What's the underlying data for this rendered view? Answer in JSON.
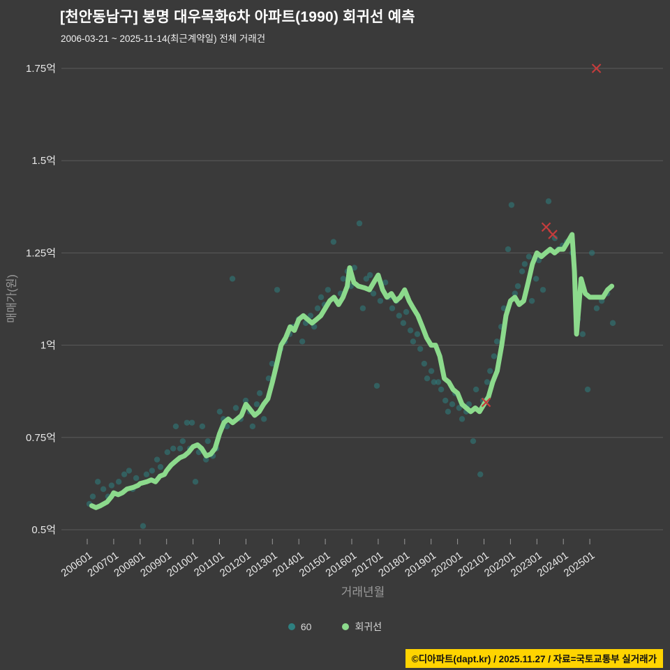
{
  "header": {
    "title": "[천안동남구] 봉명 대우목화6차 아파트(1990) 회귀선 예측",
    "subtitle": "2006-03-21 ~ 2025-11-14(최근계약일) 전체 거래건"
  },
  "footer": {
    "credit": "©디아파트(dapt.kr) / 2025.11.27 / 자료=국토교통부 실거래가"
  },
  "chart_data": {
    "type": "scatter",
    "title": "[천안동남구] 봉명 대우목화6차 아파트(1990) 회귀선 예측",
    "xlabel": "거래년월",
    "ylabel": "매매가(원)",
    "unit": "억원",
    "grid": "horizontal-only",
    "legend_position": "bottom-center",
    "xlim": [
      2005.1,
      2027.7
    ],
    "ylim": [
      0.38,
      1.78
    ],
    "x_ticks": [
      "200601",
      "200701",
      "200801",
      "200901",
      "201001",
      "201101",
      "201201",
      "201301",
      "201401",
      "201501",
      "201601",
      "201701",
      "201801",
      "201901",
      "202001",
      "202101",
      "202201",
      "202301",
      "202401",
      "202501"
    ],
    "y_ticks": [
      {
        "label": "0.5억",
        "value": 0.5
      },
      {
        "label": "0.75억",
        "value": 0.75
      },
      {
        "label": "1억",
        "value": 1.0
      },
      {
        "label": "1.25억",
        "value": 1.25
      },
      {
        "label": "1.5억",
        "value": 1.5
      },
      {
        "label": "1.75억",
        "value": 1.75
      }
    ],
    "legend": [
      {
        "label": "60",
        "color": "#2e8080"
      },
      {
        "label": "회귀선",
        "color": "#8cda8c"
      }
    ],
    "colors": {
      "background": "#3a3a3a",
      "grid": "#5a5a5a",
      "tick_label": "#e8e8e8",
      "axis_title": "#9a9a9a",
      "scatter": "#2e8080",
      "line": "#8cda8c",
      "outlier": "#c43c3c",
      "footer_bg": "#ffd400",
      "title": "#ffffff"
    },
    "series": [
      {
        "name": "60",
        "type": "scatter",
        "color": "#2e8080",
        "points": [
          [
            2006.08,
            0.57
          ],
          [
            2006.21,
            0.59
          ],
          [
            2006.4,
            0.63
          ],
          [
            2006.61,
            0.61
          ],
          [
            2006.79,
            0.59
          ],
          [
            2006.92,
            0.62
          ],
          [
            2007.19,
            0.63
          ],
          [
            2007.4,
            0.65
          ],
          [
            2007.58,
            0.66
          ],
          [
            2007.72,
            0.61
          ],
          [
            2007.85,
            0.64
          ],
          [
            2008.11,
            0.51
          ],
          [
            2008.24,
            0.65
          ],
          [
            2008.45,
            0.66
          ],
          [
            2008.64,
            0.69
          ],
          [
            2008.77,
            0.67
          ],
          [
            2009.03,
            0.71
          ],
          [
            2009.25,
            0.72
          ],
          [
            2009.35,
            0.78
          ],
          [
            2009.51,
            0.72
          ],
          [
            2009.61,
            0.74
          ],
          [
            2009.77,
            0.79
          ],
          [
            2009.88,
            0.72
          ],
          [
            2009.96,
            0.79
          ],
          [
            2010.09,
            0.63
          ],
          [
            2010.22,
            0.71
          ],
          [
            2010.35,
            0.78
          ],
          [
            2010.49,
            0.69
          ],
          [
            2010.56,
            0.74
          ],
          [
            2010.75,
            0.7
          ],
          [
            2010.88,
            0.72
          ],
          [
            2011.01,
            0.82
          ],
          [
            2011.15,
            0.8
          ],
          [
            2011.28,
            0.78
          ],
          [
            2011.49,
            1.18
          ],
          [
            2011.62,
            0.83
          ],
          [
            2011.8,
            0.8
          ],
          [
            2011.99,
            0.85
          ],
          [
            2012.15,
            0.82
          ],
          [
            2012.25,
            0.78
          ],
          [
            2012.41,
            0.84
          ],
          [
            2012.52,
            0.87
          ],
          [
            2012.68,
            0.8
          ],
          [
            2012.86,
            0.91
          ],
          [
            2012.99,
            0.95
          ],
          [
            2013.18,
            1.15
          ],
          [
            2013.31,
            0.99
          ],
          [
            2013.47,
            1.01
          ],
          [
            2013.65,
            1.03
          ],
          [
            2013.78,
            1.05
          ],
          [
            2013.99,
            1.07
          ],
          [
            2014.13,
            1.01
          ],
          [
            2014.26,
            1.06
          ],
          [
            2014.44,
            1.08
          ],
          [
            2014.58,
            1.05
          ],
          [
            2014.71,
            1.1
          ],
          [
            2014.84,
            1.13
          ],
          [
            2014.97,
            1.11
          ],
          [
            2015.1,
            1.15
          ],
          [
            2015.31,
            1.28
          ],
          [
            2015.42,
            1.12
          ],
          [
            2015.58,
            1.14
          ],
          [
            2015.68,
            1.18
          ],
          [
            2015.84,
            1.2
          ],
          [
            2015.97,
            1.16
          ],
          [
            2016.1,
            1.21
          ],
          [
            2016.29,
            1.33
          ],
          [
            2016.42,
            1.1
          ],
          [
            2016.55,
            1.18
          ],
          [
            2016.69,
            1.19
          ],
          [
            2016.82,
            1.14
          ],
          [
            2016.95,
            0.89
          ],
          [
            2017.08,
            1.12
          ],
          [
            2017.27,
            1.17
          ],
          [
            2017.42,
            1.13
          ],
          [
            2017.53,
            1.1
          ],
          [
            2017.69,
            1.12
          ],
          [
            2017.79,
            1.08
          ],
          [
            2017.95,
            1.06
          ],
          [
            2018.06,
            1.09
          ],
          [
            2018.22,
            1.04
          ],
          [
            2018.32,
            1.01
          ],
          [
            2018.48,
            1.03
          ],
          [
            2018.59,
            0.99
          ],
          [
            2018.74,
            0.95
          ],
          [
            2018.85,
            0.91
          ],
          [
            2019.01,
            0.93
          ],
          [
            2019.11,
            0.9
          ],
          [
            2019.27,
            0.9
          ],
          [
            2019.38,
            0.88
          ],
          [
            2019.54,
            0.85
          ],
          [
            2019.64,
            0.82
          ],
          [
            2019.8,
            0.84
          ],
          [
            2019.91,
            0.87
          ],
          [
            2020.06,
            0.83
          ],
          [
            2020.17,
            0.8
          ],
          [
            2020.33,
            0.82
          ],
          [
            2020.43,
            0.84
          ],
          [
            2020.59,
            0.74
          ],
          [
            2020.7,
            0.88
          ],
          [
            2020.86,
            0.65
          ],
          [
            2020.96,
            0.85
          ],
          [
            2021.12,
            0.9
          ],
          [
            2021.23,
            0.93
          ],
          [
            2021.38,
            0.97
          ],
          [
            2021.49,
            1.01
          ],
          [
            2021.65,
            1.05
          ],
          [
            2021.75,
            1.1
          ],
          [
            2021.91,
            1.26
          ],
          [
            2022.04,
            1.38
          ],
          [
            2022.17,
            1.14
          ],
          [
            2022.28,
            1.16
          ],
          [
            2022.44,
            1.2
          ],
          [
            2022.54,
            1.22
          ],
          [
            2022.7,
            1.24
          ],
          [
            2022.81,
            1.12
          ],
          [
            2022.97,
            1.18
          ],
          [
            2023.07,
            1.23
          ],
          [
            2023.23,
            1.15
          ],
          [
            2023.44,
            1.39
          ],
          [
            2023.68,
            1.29
          ],
          [
            2023.81,
            1.26
          ],
          [
            2023.97,
            1.27
          ],
          [
            2024.13,
            1.28
          ],
          [
            2024.34,
            1.25
          ],
          [
            2024.55,
            1.07
          ],
          [
            2024.73,
            1.03
          ],
          [
            2024.92,
            0.88
          ],
          [
            2025.08,
            1.25
          ],
          [
            2025.26,
            1.1
          ],
          [
            2025.45,
            1.12
          ],
          [
            2025.66,
            1.14
          ],
          [
            2025.87,
            1.06
          ]
        ]
      },
      {
        "name": "회귀선",
        "type": "line",
        "color": "#8cda8c",
        "points": [
          [
            2006.17,
            0.565
          ],
          [
            2006.33,
            0.56
          ],
          [
            2006.5,
            0.565
          ],
          [
            2006.75,
            0.575
          ],
          [
            2006.92,
            0.59
          ],
          [
            2007.0,
            0.6
          ],
          [
            2007.17,
            0.595
          ],
          [
            2007.33,
            0.6
          ],
          [
            2007.5,
            0.61
          ],
          [
            2007.75,
            0.615
          ],
          [
            2007.92,
            0.62
          ],
          [
            2008.0,
            0.625
          ],
          [
            2008.25,
            0.63
          ],
          [
            2008.42,
            0.635
          ],
          [
            2008.58,
            0.63
          ],
          [
            2008.75,
            0.645
          ],
          [
            2008.92,
            0.65
          ],
          [
            2009.0,
            0.66
          ],
          [
            2009.17,
            0.675
          ],
          [
            2009.33,
            0.685
          ],
          [
            2009.5,
            0.695
          ],
          [
            2009.67,
            0.7
          ],
          [
            2009.83,
            0.71
          ],
          [
            2010.0,
            0.725
          ],
          [
            2010.17,
            0.73
          ],
          [
            2010.33,
            0.72
          ],
          [
            2010.5,
            0.7
          ],
          [
            2010.67,
            0.705
          ],
          [
            2010.83,
            0.72
          ],
          [
            2011.0,
            0.76
          ],
          [
            2011.17,
            0.79
          ],
          [
            2011.33,
            0.8
          ],
          [
            2011.5,
            0.79
          ],
          [
            2011.67,
            0.8
          ],
          [
            2011.83,
            0.81
          ],
          [
            2012.0,
            0.84
          ],
          [
            2012.17,
            0.825
          ],
          [
            2012.33,
            0.81
          ],
          [
            2012.5,
            0.82
          ],
          [
            2012.67,
            0.84
          ],
          [
            2012.83,
            0.855
          ],
          [
            2013.0,
            0.9
          ],
          [
            2013.17,
            0.95
          ],
          [
            2013.33,
            1.0
          ],
          [
            2013.5,
            1.02
          ],
          [
            2013.67,
            1.05
          ],
          [
            2013.83,
            1.04
          ],
          [
            2014.0,
            1.07
          ],
          [
            2014.17,
            1.08
          ],
          [
            2014.33,
            1.07
          ],
          [
            2014.5,
            1.06
          ],
          [
            2014.67,
            1.07
          ],
          [
            2014.83,
            1.08
          ],
          [
            2015.0,
            1.1
          ],
          [
            2015.17,
            1.12
          ],
          [
            2015.33,
            1.13
          ],
          [
            2015.5,
            1.11
          ],
          [
            2015.67,
            1.13
          ],
          [
            2015.83,
            1.16
          ],
          [
            2015.92,
            1.21
          ],
          [
            2016.08,
            1.17
          ],
          [
            2016.25,
            1.16
          ],
          [
            2016.5,
            1.155
          ],
          [
            2016.67,
            1.15
          ],
          [
            2016.83,
            1.17
          ],
          [
            2017.0,
            1.19
          ],
          [
            2017.17,
            1.15
          ],
          [
            2017.33,
            1.13
          ],
          [
            2017.5,
            1.14
          ],
          [
            2017.67,
            1.12
          ],
          [
            2017.83,
            1.13
          ],
          [
            2018.0,
            1.15
          ],
          [
            2018.17,
            1.12
          ],
          [
            2018.33,
            1.1
          ],
          [
            2018.5,
            1.08
          ],
          [
            2018.67,
            1.05
          ],
          [
            2018.83,
            1.02
          ],
          [
            2019.0,
            1.0
          ],
          [
            2019.17,
            1.0
          ],
          [
            2019.33,
            0.97
          ],
          [
            2019.5,
            0.91
          ],
          [
            2019.67,
            0.9
          ],
          [
            2019.83,
            0.88
          ],
          [
            2020.0,
            0.87
          ],
          [
            2020.17,
            0.84
          ],
          [
            2020.33,
            0.83
          ],
          [
            2020.5,
            0.82
          ],
          [
            2020.67,
            0.83
          ],
          [
            2020.83,
            0.82
          ],
          [
            2021.0,
            0.84
          ],
          [
            2021.17,
            0.86
          ],
          [
            2021.33,
            0.9
          ],
          [
            2021.5,
            0.93
          ],
          [
            2021.67,
            1.0
          ],
          [
            2021.83,
            1.08
          ],
          [
            2022.0,
            1.12
          ],
          [
            2022.17,
            1.13
          ],
          [
            2022.33,
            1.11
          ],
          [
            2022.5,
            1.12
          ],
          [
            2022.67,
            1.17
          ],
          [
            2022.83,
            1.22
          ],
          [
            2023.0,
            1.25
          ],
          [
            2023.17,
            1.24
          ],
          [
            2023.33,
            1.25
          ],
          [
            2023.5,
            1.26
          ],
          [
            2023.67,
            1.25
          ],
          [
            2023.83,
            1.26
          ],
          [
            2024.0,
            1.26
          ],
          [
            2024.17,
            1.28
          ],
          [
            2024.33,
            1.3
          ],
          [
            2024.42,
            1.2
          ],
          [
            2024.5,
            1.03
          ],
          [
            2024.58,
            1.1
          ],
          [
            2024.67,
            1.18
          ],
          [
            2024.83,
            1.14
          ],
          [
            2025.0,
            1.13
          ],
          [
            2025.25,
            1.13
          ],
          [
            2025.5,
            1.13
          ],
          [
            2025.67,
            1.15
          ],
          [
            2025.83,
            1.16
          ]
        ]
      },
      {
        "name": "outlier-x",
        "type": "x-marker",
        "color": "#c43c3c",
        "points": [
          [
            2021.08,
            0.845
          ],
          [
            2023.35,
            1.32
          ],
          [
            2023.6,
            1.3
          ],
          [
            2025.25,
            1.75
          ]
        ]
      }
    ]
  }
}
